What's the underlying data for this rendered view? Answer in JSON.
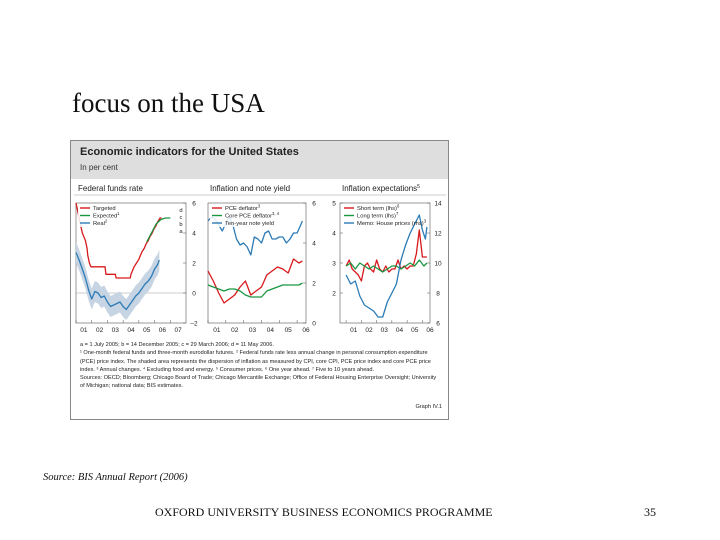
{
  "slide": {
    "title": "focus on the USA",
    "source": "Source: BIS Annual Report (2006)",
    "footer": "OXFORD UNIVERSITY BUSINESS ECONOMICS PROGRAMME",
    "page_number": "35"
  },
  "figure": {
    "title": "Economic indicators for the United States",
    "subtitle": "In per cent",
    "notes": [
      "a = 1 July 2005; b = 14 December 2005; c = 29 March 2006; d = 11 May 2006.",
      "¹ One-month federal funds and three-month eurodollar futures.   ² Federal funds rate less annual change in personal consumption expenditure (PCE) price index. The shaded area represents the dispersion of inflation as measured by CPI, core CPI, PCE price index and core PCE price index.   ³ Annual changes.   ⁴ Excluding food and energy.   ⁵ Consumer prices.   ⁶ One year ahead.   ⁷ Five to 10 years ahead.",
      "Sources: OECD; Bloomberg; Chicago Board of Trade; Chicago Mercantile Exchange; Office of Federal Housing Enterprise Oversight; University of Michigan; national data; BIS estimates."
    ],
    "graph_id": "Graph IV.1"
  },
  "chart_data": [
    {
      "type": "line",
      "title": "Federal funds rate",
      "x_ticks": [
        "01",
        "02",
        "03",
        "04",
        "05",
        "06",
        "07"
      ],
      "xlim": [
        2001,
        2008
      ],
      "ylim": [
        -2,
        6
      ],
      "y_ticks": [
        -2,
        0,
        2,
        4,
        6
      ],
      "y_axis_side": "right",
      "legend_position": "top-left",
      "annotations": [
        "d",
        "c",
        "b",
        "a"
      ],
      "series": [
        {
          "name": "Targeted",
          "color": "#d7191c",
          "style": "solid",
          "x": [
            2001.0,
            2001.1,
            2001.2,
            2001.3,
            2001.4,
            2001.5,
            2001.6,
            2001.7,
            2001.75,
            2001.85,
            2001.95,
            2002.2,
            2002.5,
            2002.85,
            2002.9,
            2003.2,
            2003.5,
            2003.55,
            2003.9,
            2004.2,
            2004.45,
            2004.5,
            2004.6,
            2004.7,
            2004.85,
            2005.0,
            2005.1,
            2005.2,
            2005.35,
            2005.45,
            2005.6,
            2005.7,
            2005.85,
            2005.95,
            2006.1,
            2006.2,
            2006.35,
            2006.45
          ],
          "y": [
            6.0,
            5.5,
            5.0,
            4.5,
            4.0,
            3.75,
            3.5,
            3.0,
            2.5,
            2.0,
            1.75,
            1.75,
            1.75,
            1.75,
            1.25,
            1.25,
            1.25,
            1.0,
            1.0,
            1.0,
            1.0,
            1.25,
            1.5,
            1.75,
            2.0,
            2.25,
            2.5,
            2.75,
            3.0,
            3.25,
            3.5,
            3.75,
            4.0,
            4.25,
            4.5,
            4.75,
            5.0,
            5.0
          ]
        },
        {
          "name": "Expected",
          "superscript": "1",
          "color": "#1a9641",
          "style": "solid",
          "x": [
            2005.5,
            2005.8,
            2006.1,
            2006.4,
            2006.7,
            2007.0
          ],
          "y": [
            3.4,
            4.0,
            4.6,
            4.9,
            5.0,
            5.0
          ]
        },
        {
          "name": "Real",
          "superscript": "2",
          "color": "#2c7bb6",
          "style": "solid",
          "x": [
            2001.0,
            2001.2,
            2001.4,
            2001.6,
            2001.8,
            2002.0,
            2002.2,
            2002.4,
            2002.6,
            2002.8,
            2003.0,
            2003.2,
            2003.4,
            2003.6,
            2003.8,
            2004.0,
            2004.2,
            2004.4,
            2004.6,
            2004.8,
            2005.0,
            2005.2,
            2005.4,
            2005.6,
            2005.8,
            2006.0,
            2006.2,
            2006.3
          ],
          "y": [
            2.7,
            2.2,
            1.6,
            1.0,
            0.2,
            -0.4,
            0.1,
            0.0,
            -0.3,
            -0.2,
            -0.6,
            -0.9,
            -0.8,
            -0.7,
            -0.6,
            -0.9,
            -1.1,
            -0.8,
            -0.5,
            -0.2,
            0.0,
            0.3,
            0.6,
            0.8,
            1.1,
            1.6,
            1.9,
            2.2
          ]
        }
      ]
    },
    {
      "type": "line",
      "title": "Inflation and note yield",
      "x_ticks": [
        "01",
        "02",
        "03",
        "04",
        "05",
        "06"
      ],
      "xlim": [
        2001,
        2006.5
      ],
      "ylim": [
        0,
        6
      ],
      "y_ticks": [
        0,
        2,
        4,
        6
      ],
      "y_axis_side": "right",
      "legend_position": "top-left",
      "series": [
        {
          "name": "PCE deflator",
          "superscript": "3",
          "color": "#d7191c",
          "style": "solid",
          "x": [
            2001.0,
            2001.3,
            2001.6,
            2001.9,
            2002.2,
            2002.5,
            2002.8,
            2003.1,
            2003.4,
            2003.7,
            2004.0,
            2004.3,
            2004.6,
            2004.9,
            2005.2,
            2005.5,
            2005.8,
            2006.1,
            2006.3
          ],
          "y": [
            2.6,
            2.1,
            1.5,
            1.0,
            1.2,
            1.4,
            1.8,
            2.1,
            1.4,
            1.6,
            1.8,
            2.4,
            2.6,
            2.8,
            2.7,
            2.5,
            3.2,
            3.0,
            3.1
          ]
        },
        {
          "name": "Core PCE deflator",
          "superscript": "3, 4",
          "color": "#1a9641",
          "style": "solid",
          "x": [
            2001.0,
            2001.3,
            2001.6,
            2001.9,
            2002.2,
            2002.5,
            2002.8,
            2003.1,
            2003.4,
            2003.7,
            2004.0,
            2004.3,
            2004.6,
            2004.9,
            2005.2,
            2005.5,
            2005.8,
            2006.1,
            2006.3
          ],
          "y": [
            1.9,
            1.8,
            1.7,
            1.6,
            1.7,
            1.7,
            1.6,
            1.4,
            1.3,
            1.3,
            1.3,
            1.6,
            1.7,
            1.8,
            1.9,
            1.9,
            1.9,
            1.9,
            2.0
          ]
        },
        {
          "name": "Ten-year note yield",
          "color": "#2c7bb6",
          "style": "solid",
          "x": [
            2001.0,
            2001.2,
            2001.4,
            2001.6,
            2001.8,
            2002.0,
            2002.2,
            2002.4,
            2002.6,
            2002.8,
            2003.0,
            2003.2,
            2003.4,
            2003.6,
            2003.8,
            2004.0,
            2004.2,
            2004.4,
            2004.6,
            2004.8,
            2005.0,
            2005.2,
            2005.4,
            2005.6,
            2005.8,
            2006.0,
            2006.2,
            2006.3
          ],
          "y": [
            5.1,
            5.3,
            5.2,
            4.9,
            4.6,
            5.0,
            5.3,
            4.9,
            4.2,
            3.9,
            4.0,
            3.8,
            3.4,
            4.3,
            4.2,
            4.0,
            4.5,
            4.6,
            4.2,
            4.2,
            4.3,
            4.3,
            4.0,
            4.2,
            4.5,
            4.5,
            4.9,
            5.1
          ]
        }
      ]
    },
    {
      "type": "line",
      "title": "Inflation expectations",
      "title_superscript": "5",
      "x_ticks": [
        "01",
        "02",
        "03",
        "04",
        "05",
        "06"
      ],
      "xlim": [
        2000.6,
        2006.5
      ],
      "ylim": [
        1,
        5
      ],
      "y_ticks": [
        2,
        3,
        4,
        5
      ],
      "y_axis_side": "left",
      "right_axis": {
        "ylim": [
          6,
          14
        ],
        "ticks": [
          6,
          8,
          10,
          12,
          14
        ]
      },
      "legend_position": "top-left",
      "series": [
        {
          "name": "Short term (lhs)",
          "superscript": "6",
          "color": "#d7191c",
          "style": "solid",
          "axis": "left",
          "x": [
            2001.0,
            2001.2,
            2001.4,
            2001.6,
            2001.8,
            2002.0,
            2002.2,
            2002.4,
            2002.6,
            2002.8,
            2003.0,
            2003.2,
            2003.4,
            2003.6,
            2003.8,
            2004.0,
            2004.2,
            2004.4,
            2004.6,
            2004.8,
            2005.0,
            2005.2,
            2005.4,
            2005.6,
            2005.8,
            2006.0,
            2006.2,
            2006.3
          ],
          "y": [
            2.9,
            3.1,
            2.8,
            2.7,
            2.6,
            2.4,
            2.9,
            3.0,
            2.8,
            2.7,
            3.1,
            2.8,
            2.7,
            2.9,
            2.7,
            2.8,
            2.8,
            3.1,
            2.8,
            2.9,
            2.8,
            2.9,
            2.9,
            3.3,
            4.1,
            3.2,
            3.2,
            3.2
          ]
        },
        {
          "name": "Long term (lhs)",
          "superscript": "7",
          "color": "#1a9641",
          "style": "solid",
          "axis": "left",
          "x": [
            2001.0,
            2001.3,
            2001.6,
            2001.9,
            2002.2,
            2002.5,
            2002.8,
            2003.1,
            2003.4,
            2003.7,
            2004.0,
            2004.3,
            2004.6,
            2004.9,
            2005.2,
            2005.5,
            2005.8,
            2006.1,
            2006.3
          ],
          "y": [
            2.9,
            3.0,
            2.8,
            3.0,
            2.9,
            2.8,
            2.9,
            2.8,
            2.7,
            2.8,
            2.9,
            2.9,
            2.8,
            2.9,
            3.0,
            2.9,
            3.1,
            2.9,
            3.0
          ]
        },
        {
          "name": "Memo: House prices (rhs)",
          "superscript": "3",
          "color": "#2c7bb6",
          "style": "solid",
          "axis": "right",
          "x": [
            2001.0,
            2001.3,
            2001.6,
            2001.9,
            2002.2,
            2002.5,
            2002.8,
            2003.1,
            2003.4,
            2003.7,
            2004.0,
            2004.3,
            2004.6,
            2004.9,
            2005.2,
            2005.5,
            2005.8,
            2006.0,
            2006.2,
            2006.3
          ],
          "y": [
            9.2,
            8.6,
            8.8,
            7.8,
            7.2,
            7.0,
            6.8,
            6.4,
            6.4,
            7.4,
            8.0,
            8.6,
            10.2,
            11.2,
            12.0,
            12.6,
            13.2,
            12.2,
            11.6,
            12.4
          ]
        }
      ]
    }
  ]
}
